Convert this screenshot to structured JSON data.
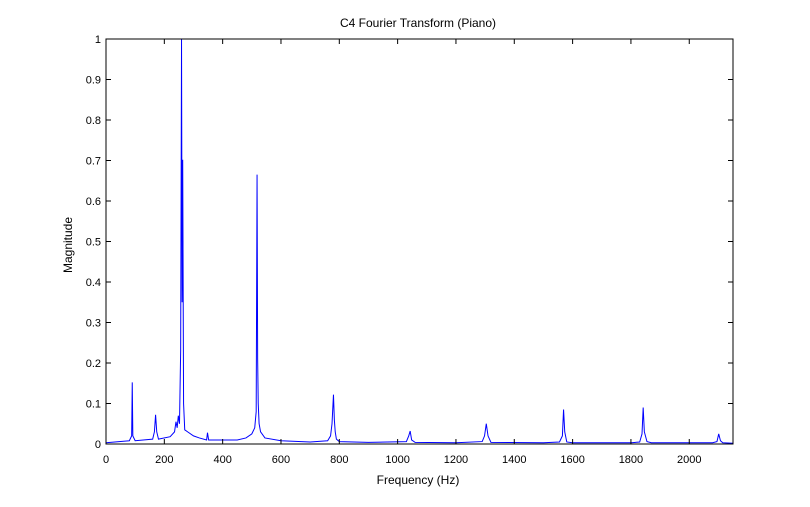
{
  "chart_data": {
    "type": "line",
    "title": "C4 Fourier Transform (Piano)",
    "xlabel": "Frequency (Hz)",
    "ylabel": "Magnitude",
    "xlim": [
      0,
      2150
    ],
    "ylim": [
      0,
      1
    ],
    "xticks": [
      0,
      200,
      400,
      600,
      800,
      1000,
      1200,
      1400,
      1600,
      1800,
      2000
    ],
    "yticks": [
      0,
      0.1,
      0.2,
      0.3,
      0.4,
      0.5,
      0.6,
      0.7,
      0.8,
      0.9,
      1
    ],
    "ytick_labels": [
      "0",
      "0.1",
      "0.2",
      "0.3",
      "0.4",
      "0.5",
      "0.6",
      "0.7",
      "0.8",
      "0.9",
      "1"
    ],
    "grid": false,
    "line_color": "#0000ff",
    "series": [
      {
        "x": [
          0,
          80,
          88,
          90,
          92,
          100,
          160,
          166,
          170,
          174,
          180,
          220,
          235,
          240,
          244,
          248,
          252,
          256,
          259,
          261,
          263,
          266,
          270,
          280,
          300,
          320,
          345,
          348,
          352,
          400,
          450,
          480,
          500,
          510,
          515,
          518,
          520,
          522,
          525,
          530,
          545,
          600,
          700,
          760,
          770,
          775,
          780,
          783,
          786,
          790,
          800,
          900,
          1030,
          1038,
          1043,
          1048,
          1060,
          1200,
          1290,
          1298,
          1304,
          1310,
          1320,
          1500,
          1555,
          1565,
          1569,
          1573,
          1580,
          1600,
          1800,
          1830,
          1838,
          1842,
          1846,
          1855,
          1870,
          2080,
          2095,
          2101,
          2107,
          2115,
          2150
        ],
        "y": [
          0.003,
          0.008,
          0.02,
          0.152,
          0.02,
          0.008,
          0.012,
          0.03,
          0.072,
          0.03,
          0.012,
          0.018,
          0.03,
          0.055,
          0.04,
          0.07,
          0.05,
          0.23,
          1.0,
          0.35,
          0.702,
          0.1,
          0.035,
          0.03,
          0.02,
          0.015,
          0.01,
          0.028,
          0.01,
          0.01,
          0.01,
          0.015,
          0.025,
          0.04,
          0.08,
          0.665,
          0.21,
          0.1,
          0.05,
          0.03,
          0.015,
          0.008,
          0.005,
          0.008,
          0.02,
          0.05,
          0.122,
          0.06,
          0.03,
          0.012,
          0.006,
          0.004,
          0.006,
          0.02,
          0.032,
          0.01,
          0.004,
          0.003,
          0.006,
          0.02,
          0.05,
          0.02,
          0.004,
          0.003,
          0.005,
          0.02,
          0.085,
          0.03,
          0.005,
          0.003,
          0.003,
          0.005,
          0.025,
          0.09,
          0.03,
          0.006,
          0.003,
          0.003,
          0.006,
          0.025,
          0.008,
          0.003,
          0.002
        ]
      }
    ]
  }
}
